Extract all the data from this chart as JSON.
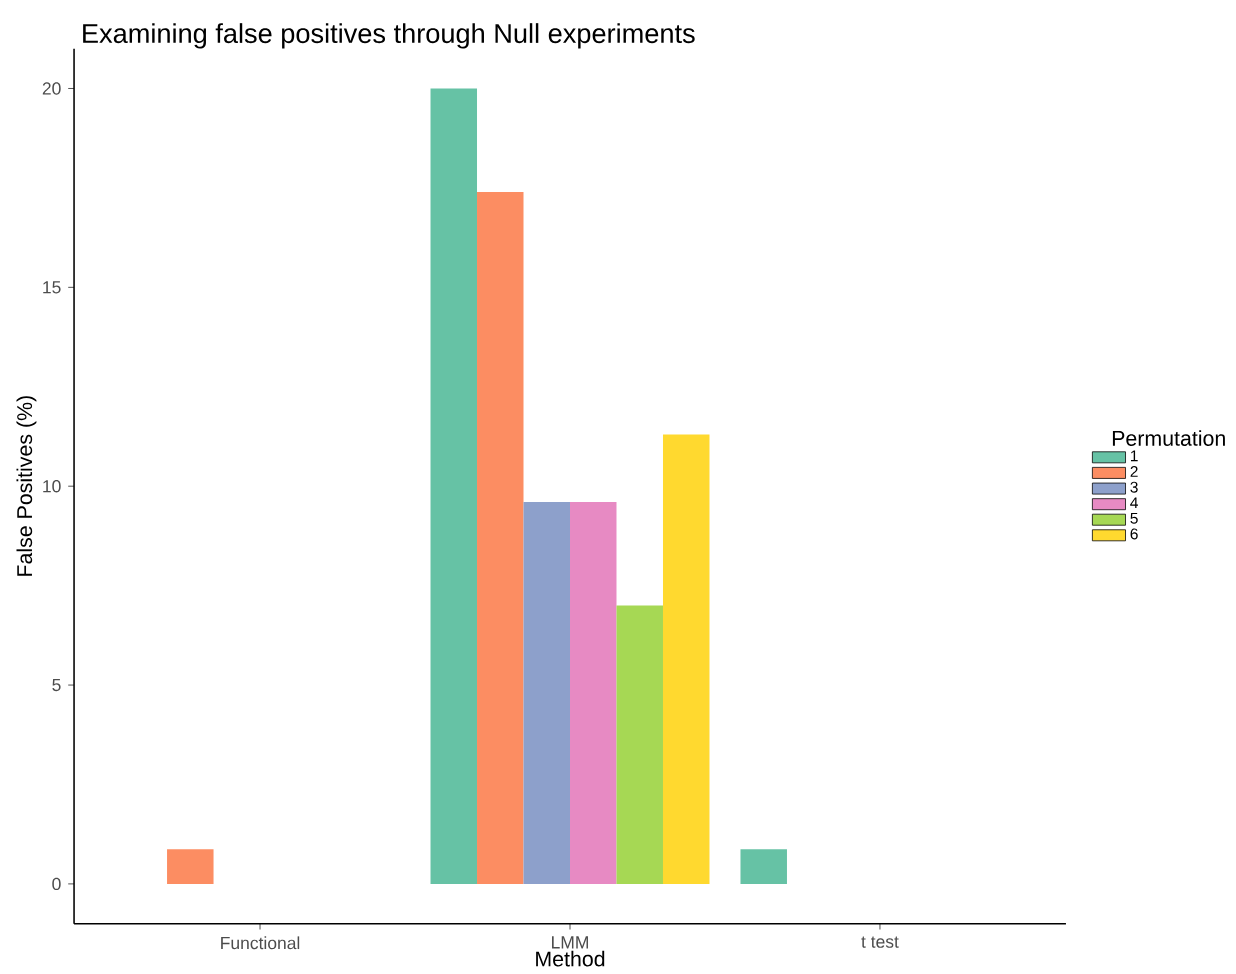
{
  "chart_data": {
    "type": "bar",
    "title": "Examining false positives through Null experiments",
    "xlabel": "Method",
    "ylabel": "False Positives (%)",
    "legend_title": "Permutation",
    "legend": "right",
    "grid": false,
    "categories": [
      "Functional",
      "LMM",
      "t test"
    ],
    "ylim": [
      -1,
      21
    ],
    "yticks": [
      0,
      5,
      10,
      15,
      20
    ],
    "series": [
      {
        "name": "1",
        "color": "#66c2a5",
        "values": [
          null,
          20,
          0.87
        ]
      },
      {
        "name": "2",
        "color": "#fc8d62",
        "values": [
          0.87,
          17.4,
          null
        ]
      },
      {
        "name": "3",
        "color": "#8da0cb",
        "values": [
          null,
          9.6,
          null
        ]
      },
      {
        "name": "4",
        "color": "#e78ac3",
        "values": [
          null,
          9.6,
          null
        ]
      },
      {
        "name": "5",
        "color": "#a6d854",
        "values": [
          null,
          7.0,
          null
        ]
      },
      {
        "name": "6",
        "color": "#ffd92f",
        "values": [
          null,
          11.3,
          null
        ]
      }
    ]
  }
}
